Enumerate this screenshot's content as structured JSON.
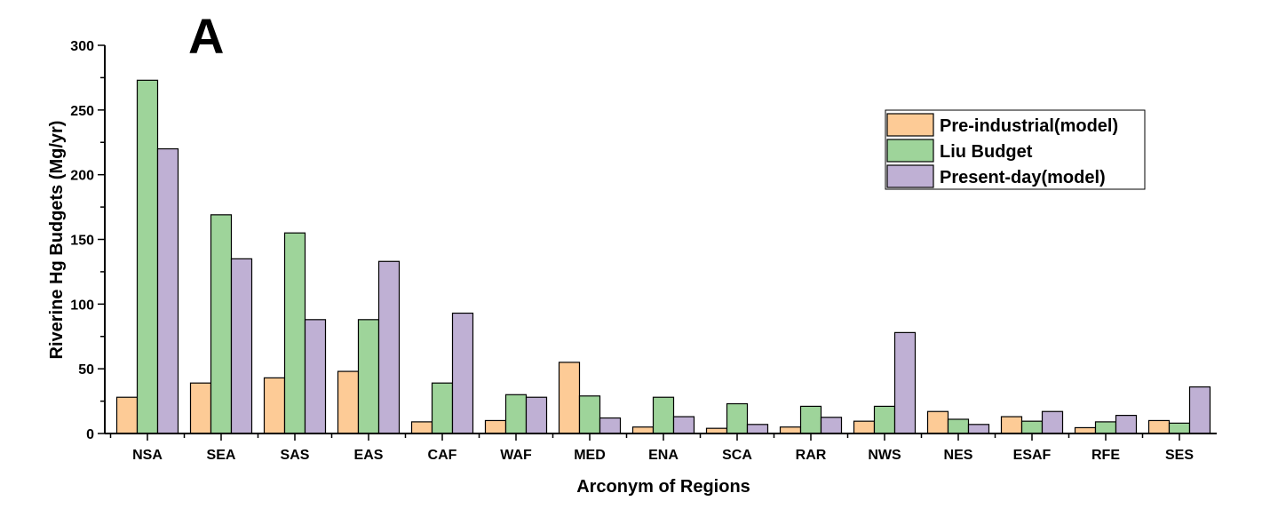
{
  "chart_data": {
    "type": "bar",
    "panel_label": "A",
    "xlabel": "Arconym of Regions",
    "ylabel": "Riverine Hg Budgets (Mg/yr)",
    "ylim": [
      0,
      300
    ],
    "yticks": [
      0,
      50,
      100,
      150,
      200,
      250,
      300
    ],
    "grid": false,
    "legend_position": "top-right",
    "categories": [
      "NSA",
      "SEA",
      "SAS",
      "EAS",
      "CAF",
      "WAF",
      "MED",
      "ENA",
      "SCA",
      "RAR",
      "NWS",
      "NES",
      "ESAF",
      "RFE",
      "SES"
    ],
    "series": [
      {
        "name": "Pre-industrial(model)",
        "color": "#FDCB96",
        "values": [
          28,
          39,
          43,
          48,
          9,
          10,
          55,
          5,
          4,
          5,
          9.5,
          17,
          13,
          4.5,
          10
        ]
      },
      {
        "name": "Liu Budget",
        "color": "#9ED49A",
        "values": [
          273,
          169,
          155,
          88,
          39,
          30,
          29,
          28,
          23,
          21,
          21,
          11,
          9.5,
          9,
          8
        ]
      },
      {
        "name": "Present-day(model)",
        "color": "#BFB0D4",
        "values": [
          220,
          135,
          88,
          133,
          93,
          28,
          12,
          13,
          7,
          12.5,
          78,
          7,
          17,
          14,
          36
        ]
      }
    ]
  }
}
